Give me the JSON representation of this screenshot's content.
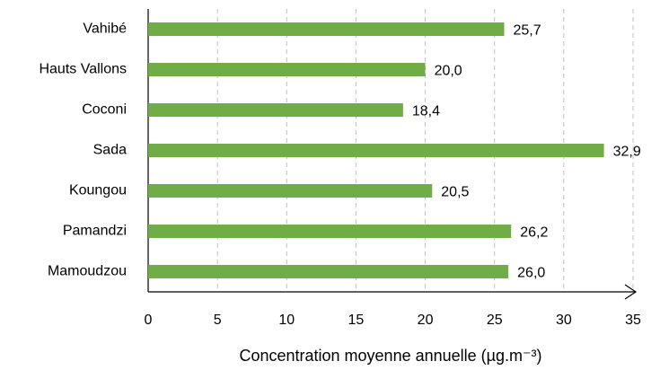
{
  "chart_data": {
    "type": "bar",
    "orientation": "horizontal",
    "categories": [
      "Vahibé",
      "Hauts Vallons",
      "Coconi",
      "Sada",
      "Koungou",
      "Pamandzi",
      "Mamoudzou"
    ],
    "values": [
      25.7,
      20.0,
      18.4,
      32.9,
      20.5,
      26.2,
      26.0
    ],
    "value_labels": [
      "25,7",
      "20,0",
      "18,4",
      "32,9",
      "20,5",
      "26,2",
      "26,0"
    ],
    "color": "#70ad47",
    "xlabel": "Concentration moyenne annuelle (µg.m⁻³)",
    "xlim": [
      0,
      35
    ],
    "xticks": [
      0,
      5,
      10,
      15,
      20,
      25,
      30,
      35
    ],
    "grid": true
  }
}
